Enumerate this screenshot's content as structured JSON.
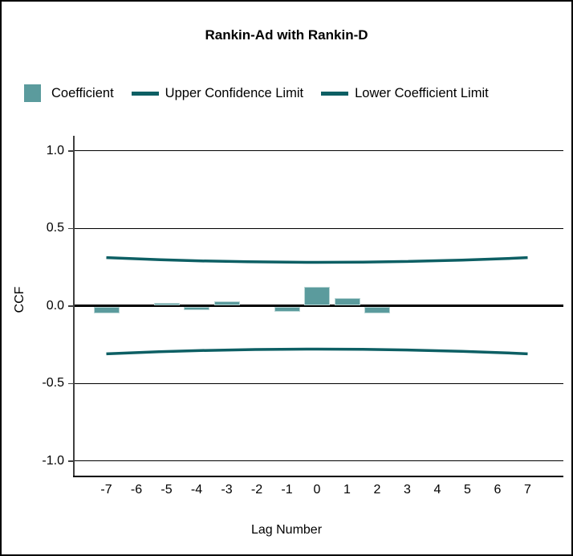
{
  "figure": {
    "title": "Rankin-Ad with Rankin-D",
    "background": "#ffffff",
    "border_color": "#000000"
  },
  "legend": {
    "items": [
      {
        "label": "Coefficient",
        "swatch": "square",
        "color": "#5B9B9D"
      },
      {
        "label": "Upper Confidence Limit",
        "swatch": "line",
        "color": "#0D5F64"
      },
      {
        "label": "Lower Coefficient Limit",
        "swatch": "line",
        "color": "#0D5F64"
      }
    ]
  },
  "chart_data": {
    "type": "bar",
    "title": "Rankin-Ad with Rankin-D",
    "xlabel": "Lag Number",
    "ylabel": "CCF",
    "ylim": [
      -1.0,
      1.0
    ],
    "yticks": [
      1.0,
      0.5,
      0.0,
      -0.5,
      -1.0
    ],
    "categories": [
      -7,
      -6,
      -5,
      -4,
      -3,
      -2,
      -1,
      0,
      1,
      2,
      3,
      4,
      5,
      6,
      7
    ],
    "series": [
      {
        "name": "Coefficient",
        "type": "bar",
        "values": [
          -0.04,
          0.0,
          0.02,
          -0.02,
          0.03,
          0.0,
          -0.03,
          0.12,
          0.05,
          -0.04,
          0.0,
          0.0,
          0.0,
          0.0,
          0.0
        ]
      },
      {
        "name": "Upper Confidence Limit",
        "type": "line",
        "values": [
          0.31,
          0.3,
          0.295,
          0.29,
          0.286,
          0.283,
          0.281,
          0.28,
          0.281,
          0.283,
          0.286,
          0.29,
          0.295,
          0.3,
          0.31
        ]
      },
      {
        "name": "Lower Coefficient Limit",
        "type": "line",
        "values": [
          -0.31,
          -0.3,
          -0.295,
          -0.29,
          -0.286,
          -0.283,
          -0.281,
          -0.28,
          -0.281,
          -0.283,
          -0.286,
          -0.29,
          -0.295,
          -0.3,
          -0.31
        ]
      }
    ],
    "grid": "horizontal",
    "legend_position": "top",
    "colors": {
      "bar_fill": "#5B9B9D",
      "bar_border": "#b9d6d5",
      "confidence_line": "#0D5F64",
      "zero_line": "#000000",
      "gridline": "#000000"
    }
  }
}
